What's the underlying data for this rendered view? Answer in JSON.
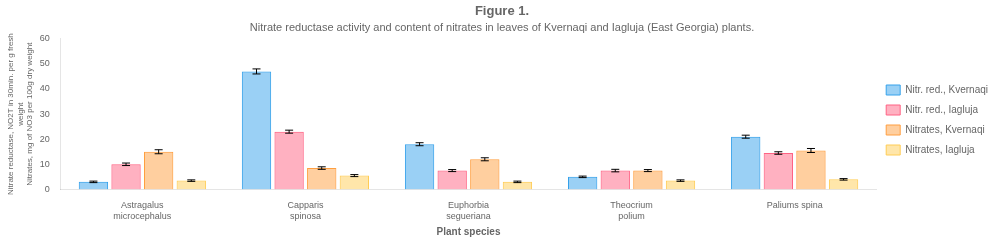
{
  "chart_data": {
    "type": "bar",
    "title": "Figure 1.",
    "subtitle": "Nitrate reductase activity and content of nitrates in leaves of Kvernaqi and Iagluja (East Georgia) plants.",
    "xlabel": "Plant species",
    "ylabel": [
      "Nitrate reductase, NO2T in 30min. per g fresh\nweight",
      "Nitrates, mg of NO3 per 100g dry weight"
    ],
    "categories": [
      "Astragalus\nmicrocephalus",
      "Capparis\nspinosa",
      "Euphorbia\nsegueriana",
      "Theocrium\npolium",
      "Paliums spina"
    ],
    "series": [
      {
        "name": "Nitr. red., Kvernaqi",
        "values": [
          3.0,
          47.0,
          18.0,
          5.0,
          21.0
        ],
        "errors": [
          0.3,
          1.0,
          0.6,
          0.3,
          0.6
        ]
      },
      {
        "name": "Nitr. red., Iagluja",
        "values": [
          10.0,
          23.0,
          7.5,
          7.5,
          14.5
        ],
        "errors": [
          0.5,
          0.6,
          0.4,
          0.5,
          0.5
        ]
      },
      {
        "name": "Nitrates, Kvernaqi",
        "values": [
          15.0,
          8.5,
          12.0,
          7.5,
          15.5
        ],
        "errors": [
          0.8,
          0.5,
          0.6,
          0.4,
          0.8
        ]
      },
      {
        "name": "Nitrates, Iagluja",
        "values": [
          3.5,
          5.5,
          3.0,
          3.5,
          4.0
        ],
        "errors": [
          0.3,
          0.4,
          0.3,
          0.3,
          0.3
        ]
      }
    ],
    "ylim": [
      0,
      60
    ],
    "yticks": [
      0,
      10,
      20,
      30,
      40,
      50,
      60
    ],
    "grid": false,
    "legend": "right"
  }
}
